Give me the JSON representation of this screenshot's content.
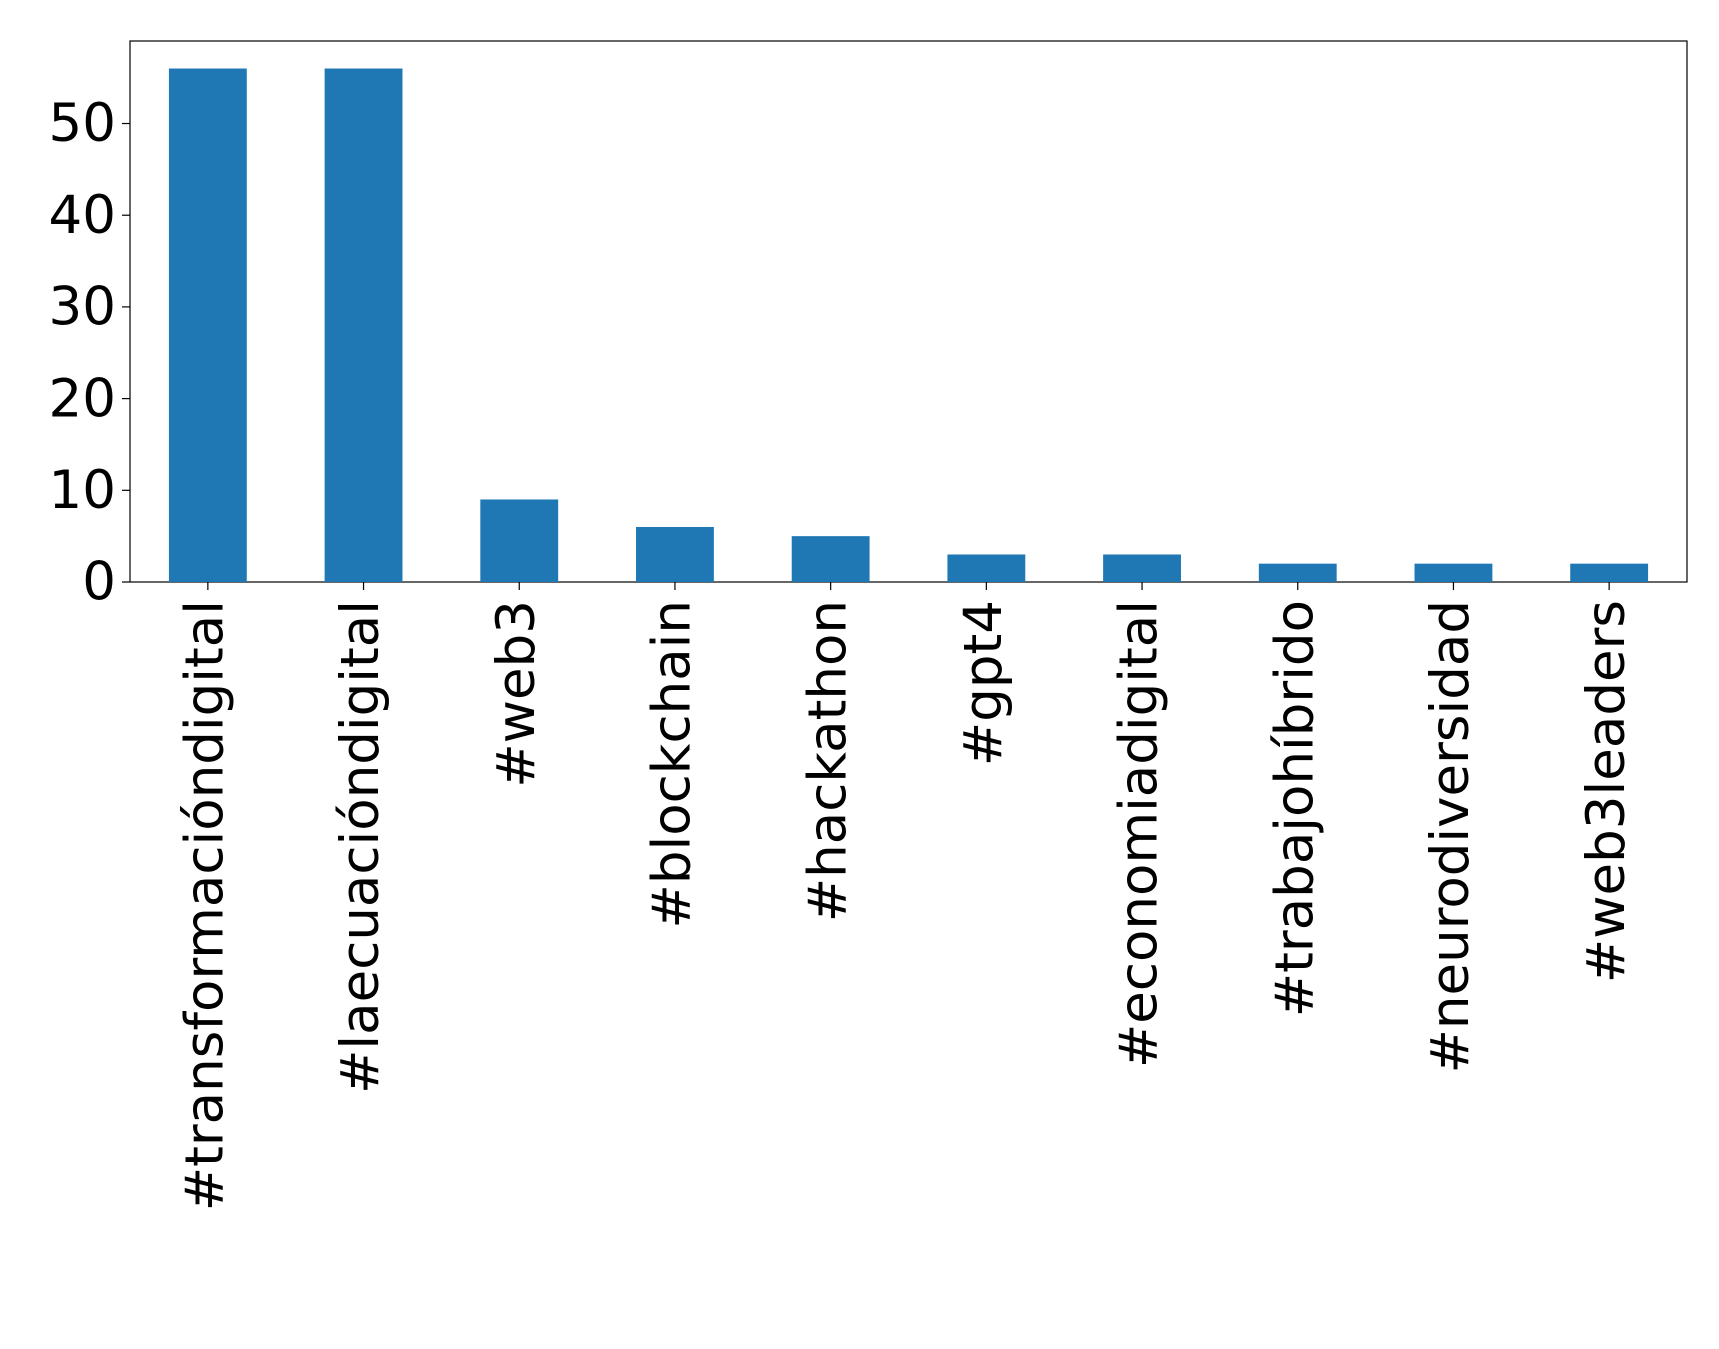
{
  "chart_data": {
    "type": "bar",
    "categories": [
      "#transformacióndigital",
      "#laecuacióndigital",
      "#web3",
      "#blockchain",
      "#hackathon",
      "#gpt4",
      "#economiadigital",
      "#trabajohíbrido",
      "#neurodiversidad",
      "#web3leaders"
    ],
    "values": [
      56,
      56,
      9,
      6,
      5,
      3,
      3,
      2,
      2,
      2
    ],
    "color": "#1f77b4",
    "ylim": [
      0,
      59
    ],
    "yticks": [
      0,
      10,
      20,
      30,
      40,
      50
    ],
    "grid": false
  }
}
